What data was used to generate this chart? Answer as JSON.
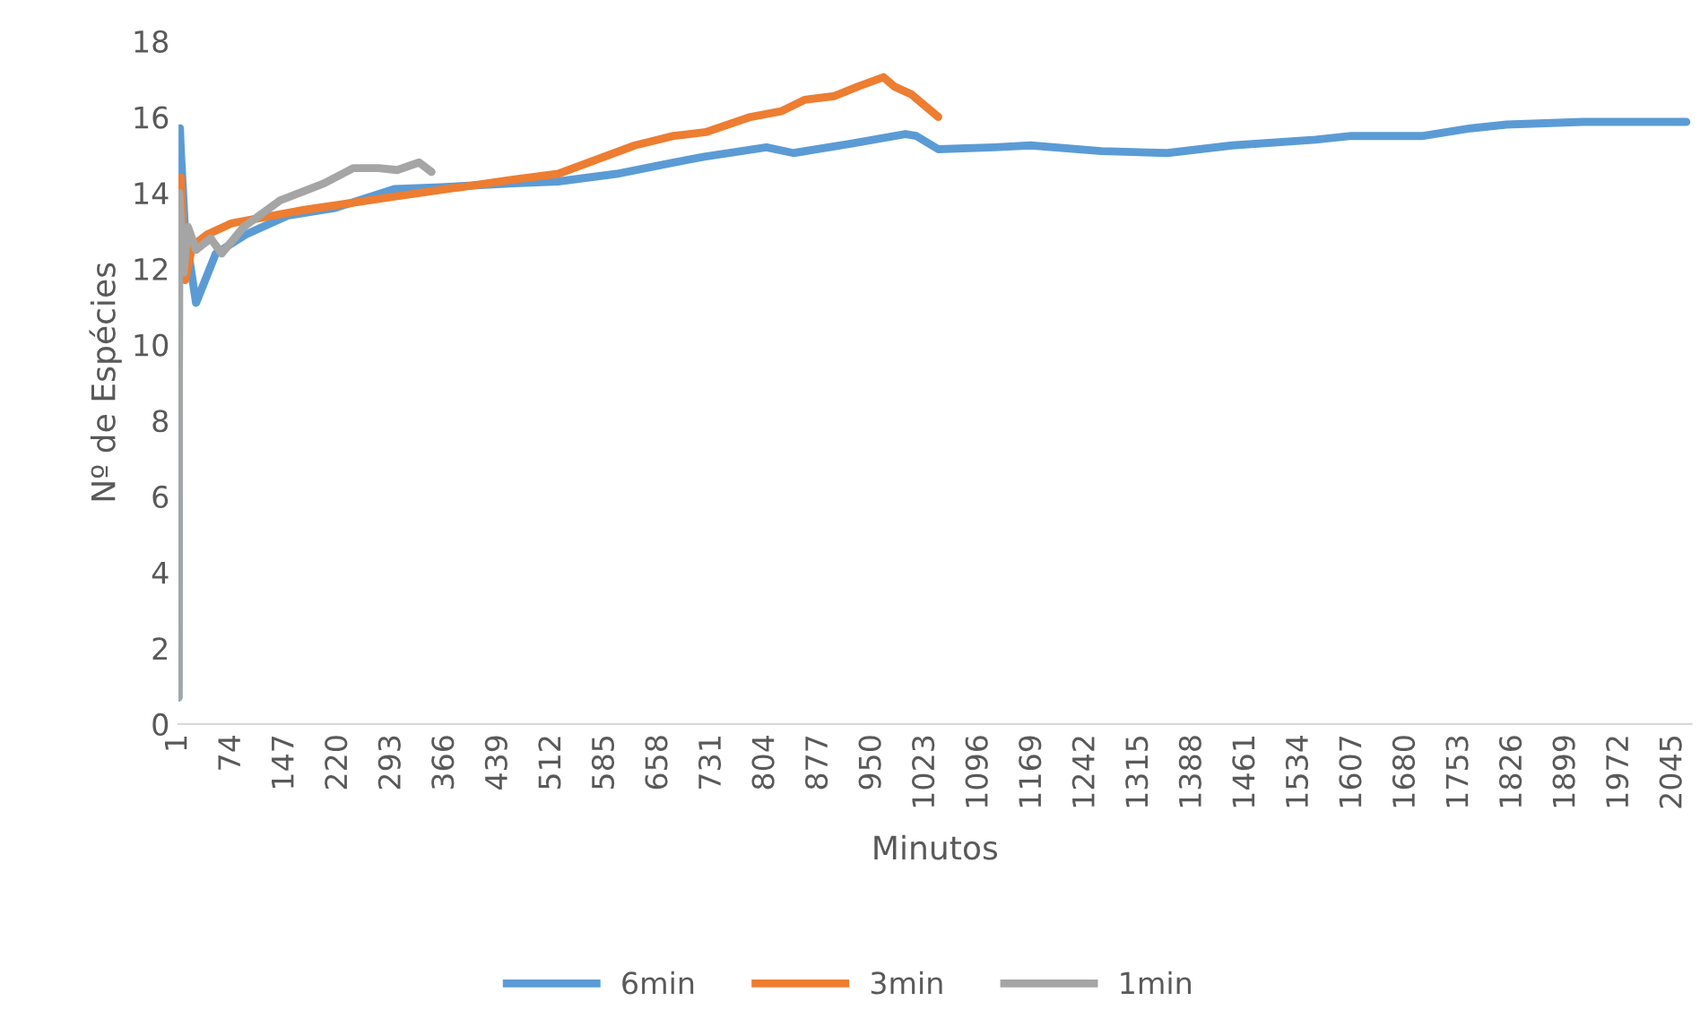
{
  "chart_data": {
    "type": "line",
    "xlabel": "Minutos",
    "ylabel": "Nº de Espécies",
    "x": [
      1,
      2,
      3,
      4,
      10,
      25,
      52,
      93,
      150,
      215,
      296,
      360,
      459,
      520,
      600,
      678,
      720,
      805,
      842,
      922,
      995,
      1010,
      1040,
      1117,
      1166,
      1263,
      1353,
      1442,
      1556,
      1605,
      1703,
      1768,
      1817,
      1922,
      2063
    ],
    "xlim": [
      1,
      2070
    ],
    "xticks": [
      1,
      74,
      147,
      220,
      293,
      366,
      439,
      512,
      585,
      658,
      731,
      804,
      877,
      950,
      1023,
      1096,
      1169,
      1242,
      1315,
      1388,
      1461,
      1534,
      1607,
      1680,
      1753,
      1826,
      1899,
      1972,
      2045
    ],
    "ylim": [
      0,
      18
    ],
    "yticks": [
      0,
      2,
      4,
      6,
      8,
      10,
      12,
      14,
      16,
      18
    ],
    "grid": false,
    "legend": "bottom",
    "marker": "none",
    "line_style": "solid",
    "series": [
      {
        "name": "6min",
        "color": "#5b9bd5",
        "values": [
          0.7,
          14.5,
          15.7,
          15.2,
          13.0,
          11.1,
          12.4,
          12.9,
          13.4,
          13.6,
          14.1,
          14.15,
          14.25,
          14.3,
          14.5,
          14.8,
          14.95,
          15.2,
          15.05,
          15.3,
          15.55,
          15.5,
          15.15,
          15.2,
          15.25,
          15.1,
          15.05,
          15.25,
          15.4,
          15.5,
          15.5,
          15.7,
          15.8,
          15.87,
          15.87
        ]
      },
      {
        "name": "3min",
        "color": "#ed7d31",
        "x": [
          2,
          4,
          10,
          20,
          40,
          74,
          173,
          296,
          459,
          520,
          625,
          678,
          722,
          783,
          825,
          857,
          898,
          930,
          965,
          980,
          1003,
          1040
        ],
        "values": [
          13.0,
          14.4,
          11.7,
          12.6,
          12.9,
          13.2,
          13.55,
          13.9,
          14.35,
          14.5,
          15.25,
          15.5,
          15.6,
          16.0,
          16.15,
          16.45,
          16.55,
          16.8,
          17.05,
          16.8,
          16.6,
          16.0
        ]
      },
      {
        "name": "1min",
        "color": "#a5a5a5",
        "x": [
          1,
          2,
          8,
          14,
          25,
          45,
          60,
          90,
          140,
          200,
          240,
          275,
          300,
          330,
          347
        ],
        "values": [
          0.7,
          14.0,
          11.9,
          13.1,
          12.5,
          12.8,
          12.4,
          13.1,
          13.8,
          14.25,
          14.65,
          14.65,
          14.6,
          14.8,
          14.55
        ]
      }
    ]
  }
}
